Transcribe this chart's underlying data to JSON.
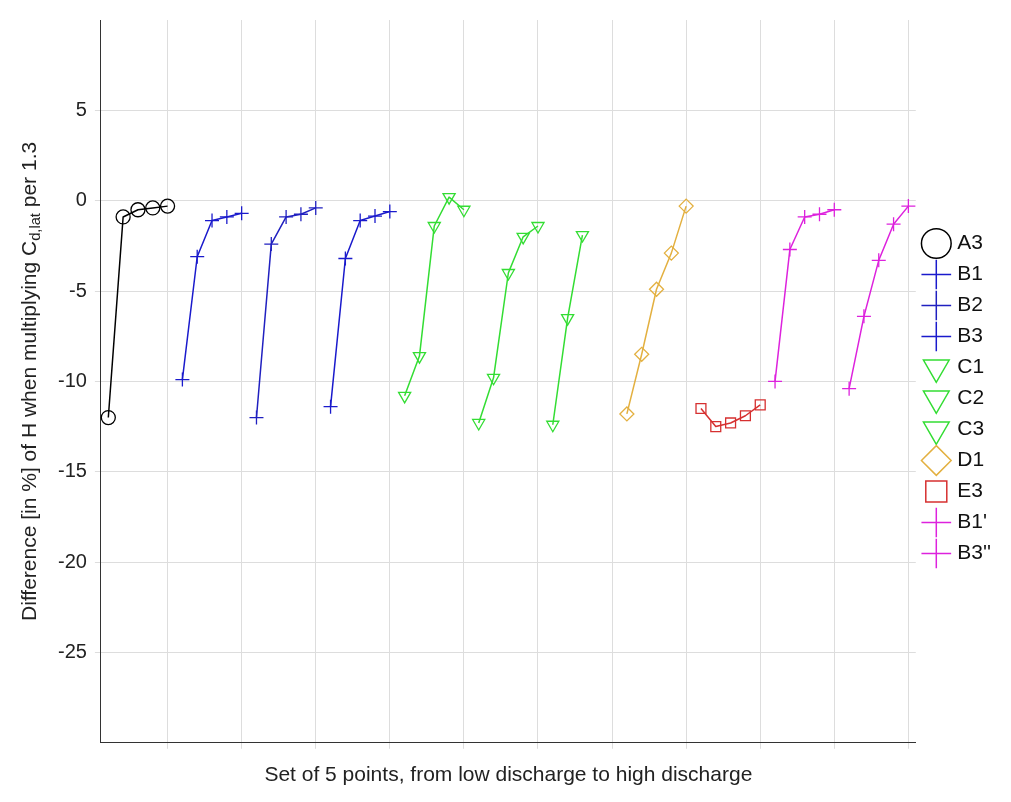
{
  "chart_data": {
    "type": "line",
    "xlabel": "Set of 5 points, from low discharge to high discharge",
    "ylabel": "Difference [in %] of H when multiplying C$_{d,lat}$ per 1.3",
    "categories": [
      null,
      null,
      null,
      null,
      null,
      null,
      null,
      null,
      null,
      null,
      null,
      null,
      null,
      null,
      null,
      null,
      null,
      null,
      null,
      null,
      null,
      null,
      null,
      null,
      null,
      null,
      null,
      null,
      null,
      null,
      null,
      null,
      null,
      null,
      null,
      null,
      null,
      null,
      null,
      null,
      null,
      null,
      null,
      null,
      null,
      null,
      null,
      null,
      null,
      null,
      null,
      null,
      null,
      null,
      null
    ],
    "ylim": [
      -30,
      10
    ],
    "yticks": [
      -25,
      -20,
      -15,
      -10,
      -5,
      0,
      5
    ],
    "tick_labels": "y",
    "grid": true,
    "legend": "right",
    "line_style": "solid",
    "series": [
      {
        "name": "A3",
        "color": "#000000",
        "marker": "circle",
        "values": [
          -12.0,
          -0.9,
          -0.5,
          -0.4,
          -0.3,
          null,
          null,
          null,
          null,
          null,
          null,
          null,
          null,
          null,
          null,
          null,
          null,
          null,
          null,
          null,
          null,
          null,
          null,
          null,
          null,
          null,
          null,
          null,
          null,
          null,
          null,
          null,
          null,
          null,
          null,
          null,
          null,
          null,
          null,
          null,
          null,
          null,
          null,
          null,
          null,
          null,
          null,
          null,
          null,
          null,
          null,
          null,
          null,
          null,
          null
        ]
      },
      {
        "name": "B1",
        "color": "#1a1acc",
        "marker": "cross",
        "values": [
          null,
          null,
          null,
          null,
          null,
          -9.9,
          -3.1,
          -1.1,
          -0.9,
          -0.7,
          null,
          null,
          null,
          null,
          null,
          null,
          null,
          null,
          null,
          null,
          null,
          null,
          null,
          null,
          null,
          null,
          null,
          null,
          null,
          null,
          null,
          null,
          null,
          null,
          null,
          null,
          null,
          null,
          null,
          null,
          null,
          null,
          null,
          null,
          null,
          null,
          null,
          null,
          null,
          null,
          null,
          null,
          null,
          null,
          null
        ]
      },
      {
        "name": "B2",
        "color": "#2020c0",
        "marker": "cross",
        "values": [
          null,
          null,
          null,
          null,
          null,
          null,
          null,
          null,
          null,
          null,
          -12.0,
          -2.4,
          -0.9,
          -0.75,
          -0.4,
          null,
          null,
          null,
          null,
          null,
          null,
          null,
          null,
          null,
          null,
          null,
          null,
          null,
          null,
          null,
          null,
          null,
          null,
          null,
          null,
          null,
          null,
          null,
          null,
          null,
          null,
          null,
          null,
          null,
          null,
          null,
          null,
          null,
          null,
          null,
          null,
          null,
          null,
          null,
          null
        ]
      },
      {
        "name": "B3",
        "color": "#1a1acc",
        "marker": "cross",
        "values": [
          null,
          null,
          null,
          null,
          null,
          null,
          null,
          null,
          null,
          null,
          null,
          null,
          null,
          null,
          null,
          -11.4,
          -3.2,
          -1.1,
          -0.85,
          -0.6,
          null,
          null,
          null,
          null,
          null,
          null,
          null,
          null,
          null,
          null,
          null,
          null,
          null,
          null,
          null,
          null,
          null,
          null,
          null,
          null,
          null,
          null,
          null,
          null,
          null,
          null,
          null,
          null,
          null,
          null,
          null,
          null,
          null,
          null,
          null
        ]
      },
      {
        "name": "C1",
        "color": "#33dd33",
        "marker": "triangle",
        "values": [
          null,
          null,
          null,
          null,
          null,
          null,
          null,
          null,
          null,
          null,
          null,
          null,
          null,
          null,
          null,
          null,
          null,
          null,
          null,
          null,
          -10.8,
          -8.6,
          -1.4,
          0.2,
          -0.5,
          null,
          null,
          null,
          null,
          null,
          null,
          null,
          null,
          null,
          null,
          null,
          null,
          null,
          null,
          null,
          null,
          null,
          null,
          null,
          null,
          null,
          null,
          null,
          null,
          null,
          null,
          null,
          null,
          null,
          null
        ]
      },
      {
        "name": "C2",
        "color": "#33dd33",
        "marker": "triangle",
        "values": [
          null,
          null,
          null,
          null,
          null,
          null,
          null,
          null,
          null,
          null,
          null,
          null,
          null,
          null,
          null,
          null,
          null,
          null,
          null,
          null,
          null,
          null,
          null,
          null,
          null,
          -12.3,
          -9.8,
          -4.0,
          -2.0,
          -1.4,
          null,
          null,
          null,
          null,
          null,
          null,
          null,
          null,
          null,
          null,
          null,
          null,
          null,
          null,
          null,
          null,
          null,
          null,
          null,
          null,
          null,
          null,
          null,
          null,
          null
        ]
      },
      {
        "name": "C3",
        "color": "#33dd33",
        "marker": "triangle",
        "values": [
          null,
          null,
          null,
          null,
          null,
          null,
          null,
          null,
          null,
          null,
          null,
          null,
          null,
          null,
          null,
          null,
          null,
          null,
          null,
          null,
          null,
          null,
          null,
          null,
          null,
          null,
          null,
          null,
          null,
          null,
          -12.4,
          -6.5,
          -1.9,
          null,
          null,
          null,
          null,
          null,
          null,
          null,
          null,
          null,
          null,
          null,
          null,
          null,
          null,
          null,
          null,
          null,
          null,
          null,
          null,
          null,
          null
        ]
      },
      {
        "name": "D1",
        "color": "#e3b040",
        "marker": "diamond",
        "values": [
          null,
          null,
          null,
          null,
          null,
          null,
          null,
          null,
          null,
          null,
          null,
          null,
          null,
          null,
          null,
          null,
          null,
          null,
          null,
          null,
          null,
          null,
          null,
          null,
          null,
          null,
          null,
          null,
          null,
          null,
          null,
          null,
          null,
          null,
          null,
          -11.8,
          -8.5,
          -4.9,
          -2.9,
          -0.3,
          null,
          null,
          null,
          null,
          null,
          null,
          null,
          null,
          null,
          null,
          null,
          null,
          null,
          null,
          null
        ]
      },
      {
        "name": "E3",
        "color": "#d63030",
        "marker": "square",
        "values": [
          null,
          null,
          null,
          null,
          null,
          null,
          null,
          null,
          null,
          null,
          null,
          null,
          null,
          null,
          null,
          null,
          null,
          null,
          null,
          null,
          null,
          null,
          null,
          null,
          null,
          null,
          null,
          null,
          null,
          null,
          null,
          null,
          null,
          null,
          null,
          null,
          null,
          null,
          null,
          null,
          -11.5,
          -12.5,
          -12.3,
          -11.9,
          -11.3,
          null,
          null,
          null,
          null,
          null,
          null,
          null,
          null,
          null,
          null
        ]
      },
      {
        "name": "B1'",
        "color": "#dd22dd",
        "marker": "cross",
        "values": [
          null,
          null,
          null,
          null,
          null,
          null,
          null,
          null,
          null,
          null,
          null,
          null,
          null,
          null,
          null,
          null,
          null,
          null,
          null,
          null,
          null,
          null,
          null,
          null,
          null,
          null,
          null,
          null,
          null,
          null,
          null,
          null,
          null,
          null,
          null,
          null,
          null,
          null,
          null,
          null,
          null,
          null,
          null,
          null,
          null,
          -10.0,
          -2.7,
          -0.9,
          -0.75,
          -0.5,
          null,
          null,
          null,
          null,
          null
        ]
      },
      {
        "name": "B3''",
        "color": "#dd22dd",
        "marker": "cross",
        "values": [
          null,
          null,
          null,
          null,
          null,
          null,
          null,
          null,
          null,
          null,
          null,
          null,
          null,
          null,
          null,
          null,
          null,
          null,
          null,
          null,
          null,
          null,
          null,
          null,
          null,
          null,
          null,
          null,
          null,
          null,
          null,
          null,
          null,
          null,
          null,
          null,
          null,
          null,
          null,
          null,
          null,
          null,
          null,
          null,
          null,
          null,
          null,
          null,
          null,
          null,
          -10.4,
          -6.4,
          -3.3,
          -1.3,
          -0.3
        ]
      }
    ]
  }
}
